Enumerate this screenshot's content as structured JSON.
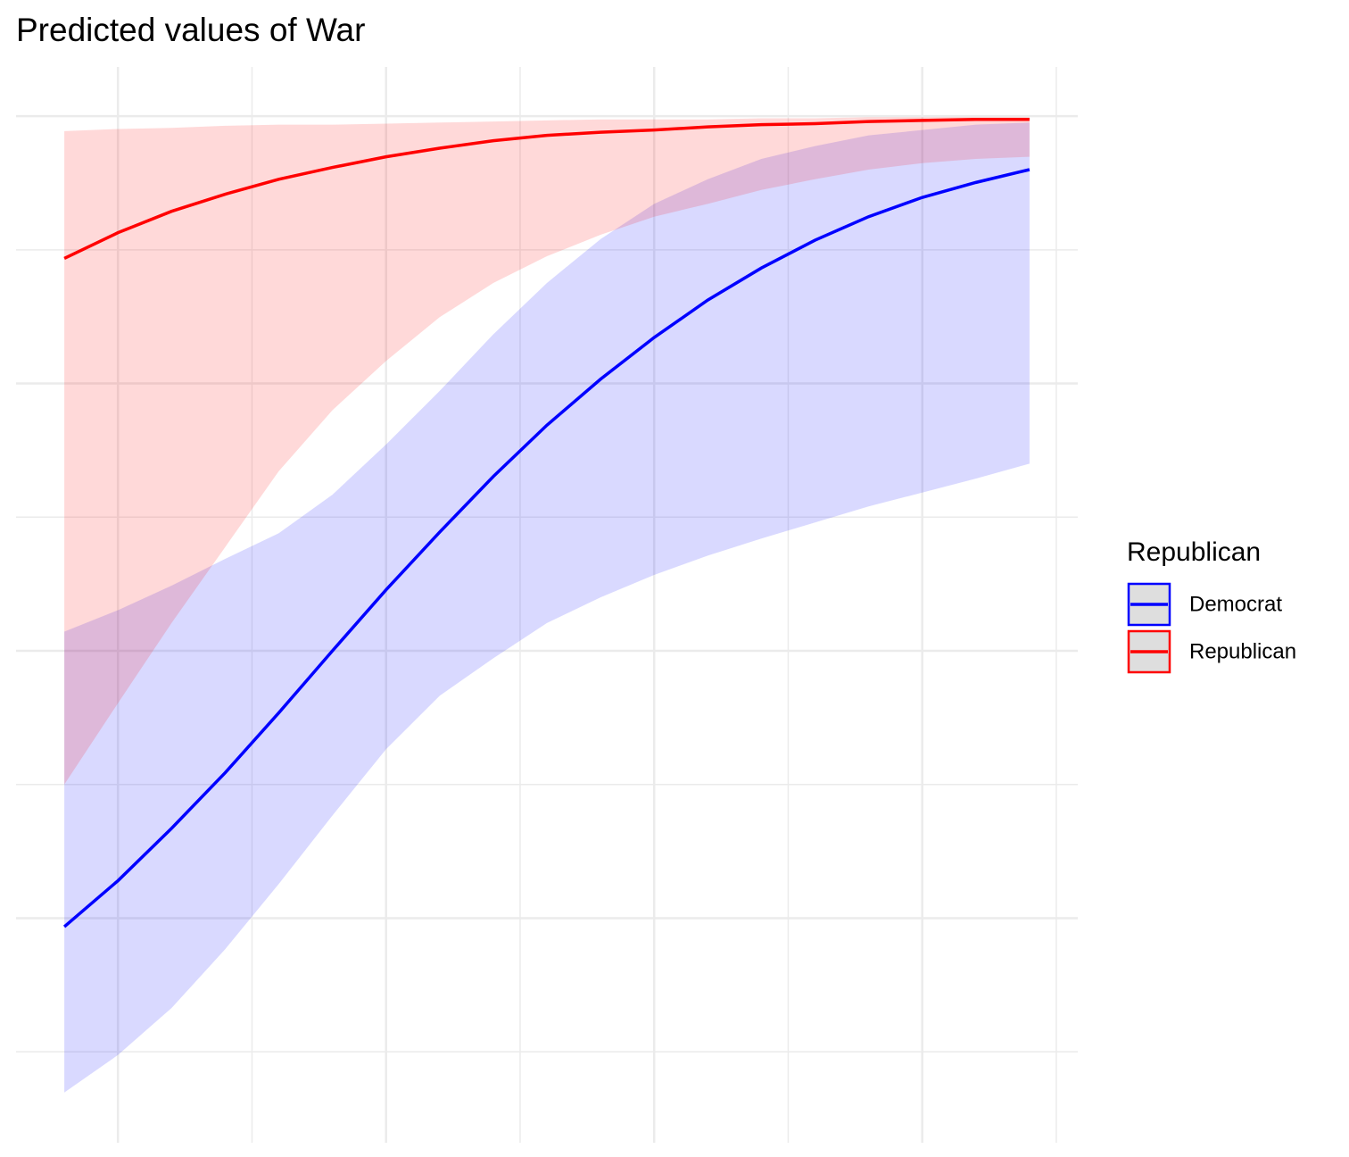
{
  "chart_data": {
    "type": "line-ribbon",
    "title": "Predicted values of War",
    "legend_title": "Republican",
    "legend": "right",
    "grid": true,
    "x": [
      -0.4,
      0,
      0.4,
      0.8,
      1.2,
      1.6,
      2,
      2.4,
      2.8,
      3.2,
      3.6,
      4,
      4.4,
      4.8,
      5.2,
      5.6,
      6,
      6.4,
      6.8
    ],
    "xlim": [
      -0.76,
      7.16
    ],
    "xticks": [
      0,
      2,
      4,
      6
    ],
    "xminor": [
      1,
      3,
      5,
      7
    ],
    "ylim": [
      0.04,
      1.046
    ],
    "yticks": [
      0.25,
      0.5,
      0.75,
      1
    ],
    "yminor": [
      0.125,
      0.375,
      0.625,
      0.875
    ],
    "series": [
      {
        "name": "Democrat",
        "color": "#0000ff",
        "values": [
          0.242,
          0.285,
          0.334,
          0.386,
          0.442,
          0.5,
          0.557,
          0.611,
          0.663,
          0.711,
          0.754,
          0.793,
          0.828,
          0.858,
          0.884,
          0.906,
          0.924,
          0.938,
          0.95
        ],
        "lower": [
          0.087,
          0.122,
          0.166,
          0.221,
          0.282,
          0.346,
          0.408,
          0.458,
          0.493,
          0.526,
          0.55,
          0.571,
          0.589,
          0.605,
          0.62,
          0.635,
          0.648,
          0.661,
          0.675
        ],
        "upper": [
          0.518,
          0.538,
          0.561,
          0.586,
          0.61,
          0.646,
          0.693,
          0.743,
          0.796,
          0.844,
          0.885,
          0.918,
          0.941,
          0.96,
          0.972,
          0.982,
          0.987,
          0.992,
          0.994
        ]
      },
      {
        "name": "Republican",
        "color": "#ff0000",
        "values": [
          0.867,
          0.891,
          0.911,
          0.927,
          0.941,
          0.952,
          0.962,
          0.97,
          0.977,
          0.982,
          0.985,
          0.987,
          0.99,
          0.992,
          0.993,
          0.995,
          0.996,
          0.997,
          0.997
        ],
        "lower": [
          0.375,
          0.451,
          0.526,
          0.597,
          0.668,
          0.725,
          0.771,
          0.812,
          0.844,
          0.869,
          0.889,
          0.906,
          0.918,
          0.931,
          0.941,
          0.95,
          0.956,
          0.96,
          0.962
        ],
        "upper": [
          0.986,
          0.988,
          0.989,
          0.991,
          0.992,
          0.992,
          0.993,
          0.994,
          0.995,
          0.996,
          0.997,
          0.997,
          0.997,
          0.998,
          0.998,
          0.999,
          0.999,
          0.999,
          0.999
        ]
      }
    ]
  }
}
